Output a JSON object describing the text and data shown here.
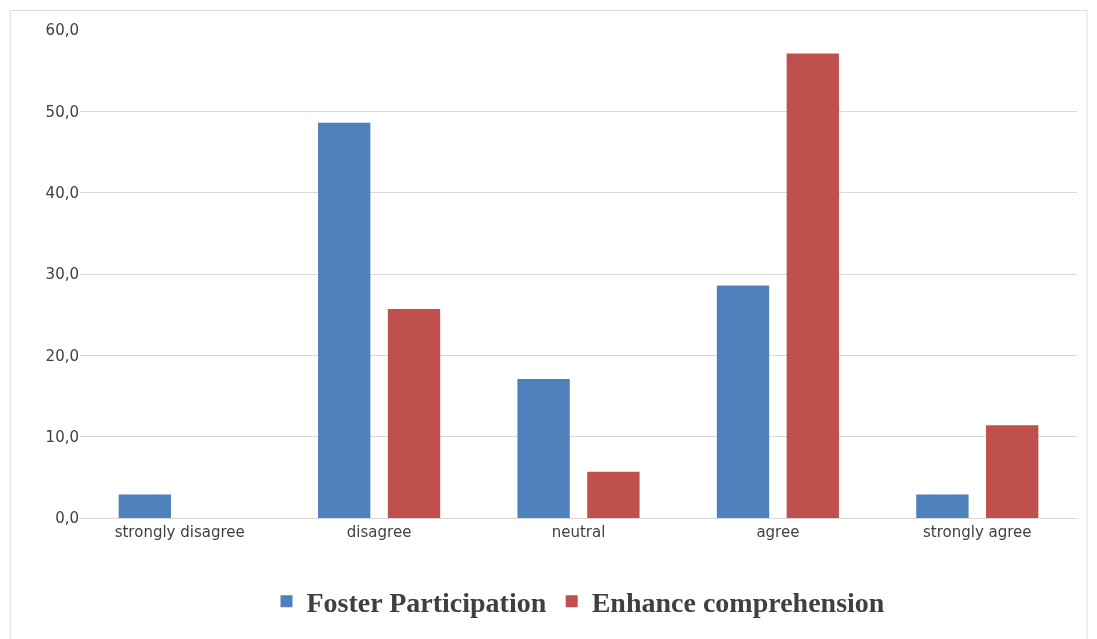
{
  "chart_data": {
    "type": "bar",
    "categories": [
      "strongly disagree",
      "disagree",
      "neutral",
      "agree",
      "strongly agree"
    ],
    "series": [
      {
        "name": "Foster Participation",
        "color": "#4f81bd",
        "values": [
          2.9,
          48.6,
          17.1,
          28.6,
          2.9
        ]
      },
      {
        "name": "Enhance comprehension",
        "color": "#c0504d",
        "values": [
          0,
          25.7,
          5.7,
          57.1,
          11.4
        ]
      }
    ],
    "ylim": [
      0,
      60
    ],
    "yticks": [
      {
        "value": 0,
        "label": "0,0"
      },
      {
        "value": 10,
        "label": "10,0"
      },
      {
        "value": 20,
        "label": "20,0"
      },
      {
        "value": 30,
        "label": "30,0"
      },
      {
        "value": 40,
        "label": "40,0"
      },
      {
        "value": 50,
        "label": "50,0"
      },
      {
        "value": 60,
        "label": "60,0"
      }
    ],
    "grid": "y",
    "legend": "bottom"
  }
}
